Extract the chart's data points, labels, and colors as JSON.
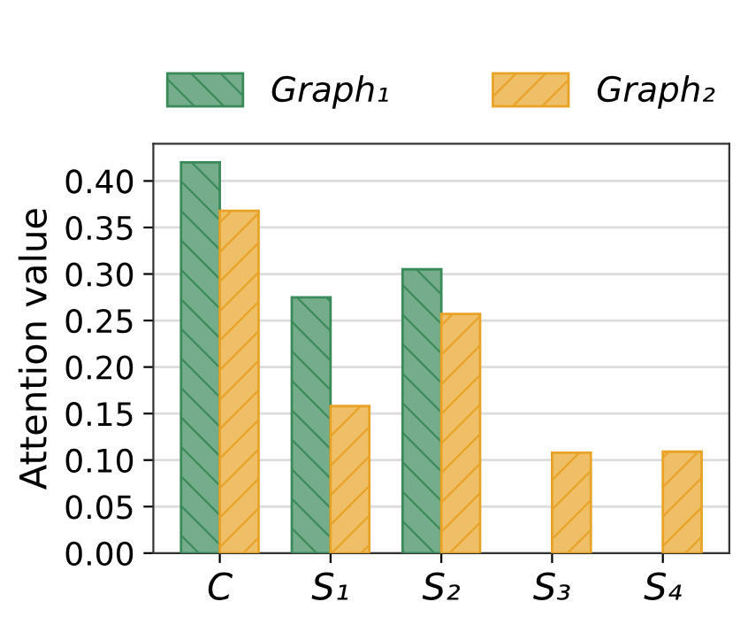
{
  "chart_data": {
    "type": "bar",
    "ylabel": "Attention value",
    "categories": [
      "C",
      "S₁",
      "S₂",
      "S₃",
      "S₄"
    ],
    "series": [
      {
        "name": "Graph₁",
        "color": "#3a8a5a",
        "values": [
          0.42,
          0.275,
          0.305,
          null,
          null
        ]
      },
      {
        "name": "Graph₂",
        "color": "#e8a326",
        "values": [
          0.368,
          0.158,
          0.257,
          0.108,
          0.109
        ]
      }
    ],
    "ylim": [
      0,
      0.44
    ],
    "yticks": [
      {
        "value": 0,
        "label": "0.00"
      },
      {
        "value": 0.05,
        "label": "0.05"
      },
      {
        "value": 0.1,
        "label": "0.10"
      },
      {
        "value": 0.15,
        "label": "0.15"
      },
      {
        "value": 0.2,
        "label": "0.20"
      },
      {
        "value": 0.25,
        "label": "0.25"
      },
      {
        "value": 0.3,
        "label": "0.30"
      },
      {
        "value": 0.35,
        "label": "0.35"
      },
      {
        "value": 0.4,
        "label": "0.40"
      }
    ],
    "grid": "y",
    "legend": "top"
  }
}
